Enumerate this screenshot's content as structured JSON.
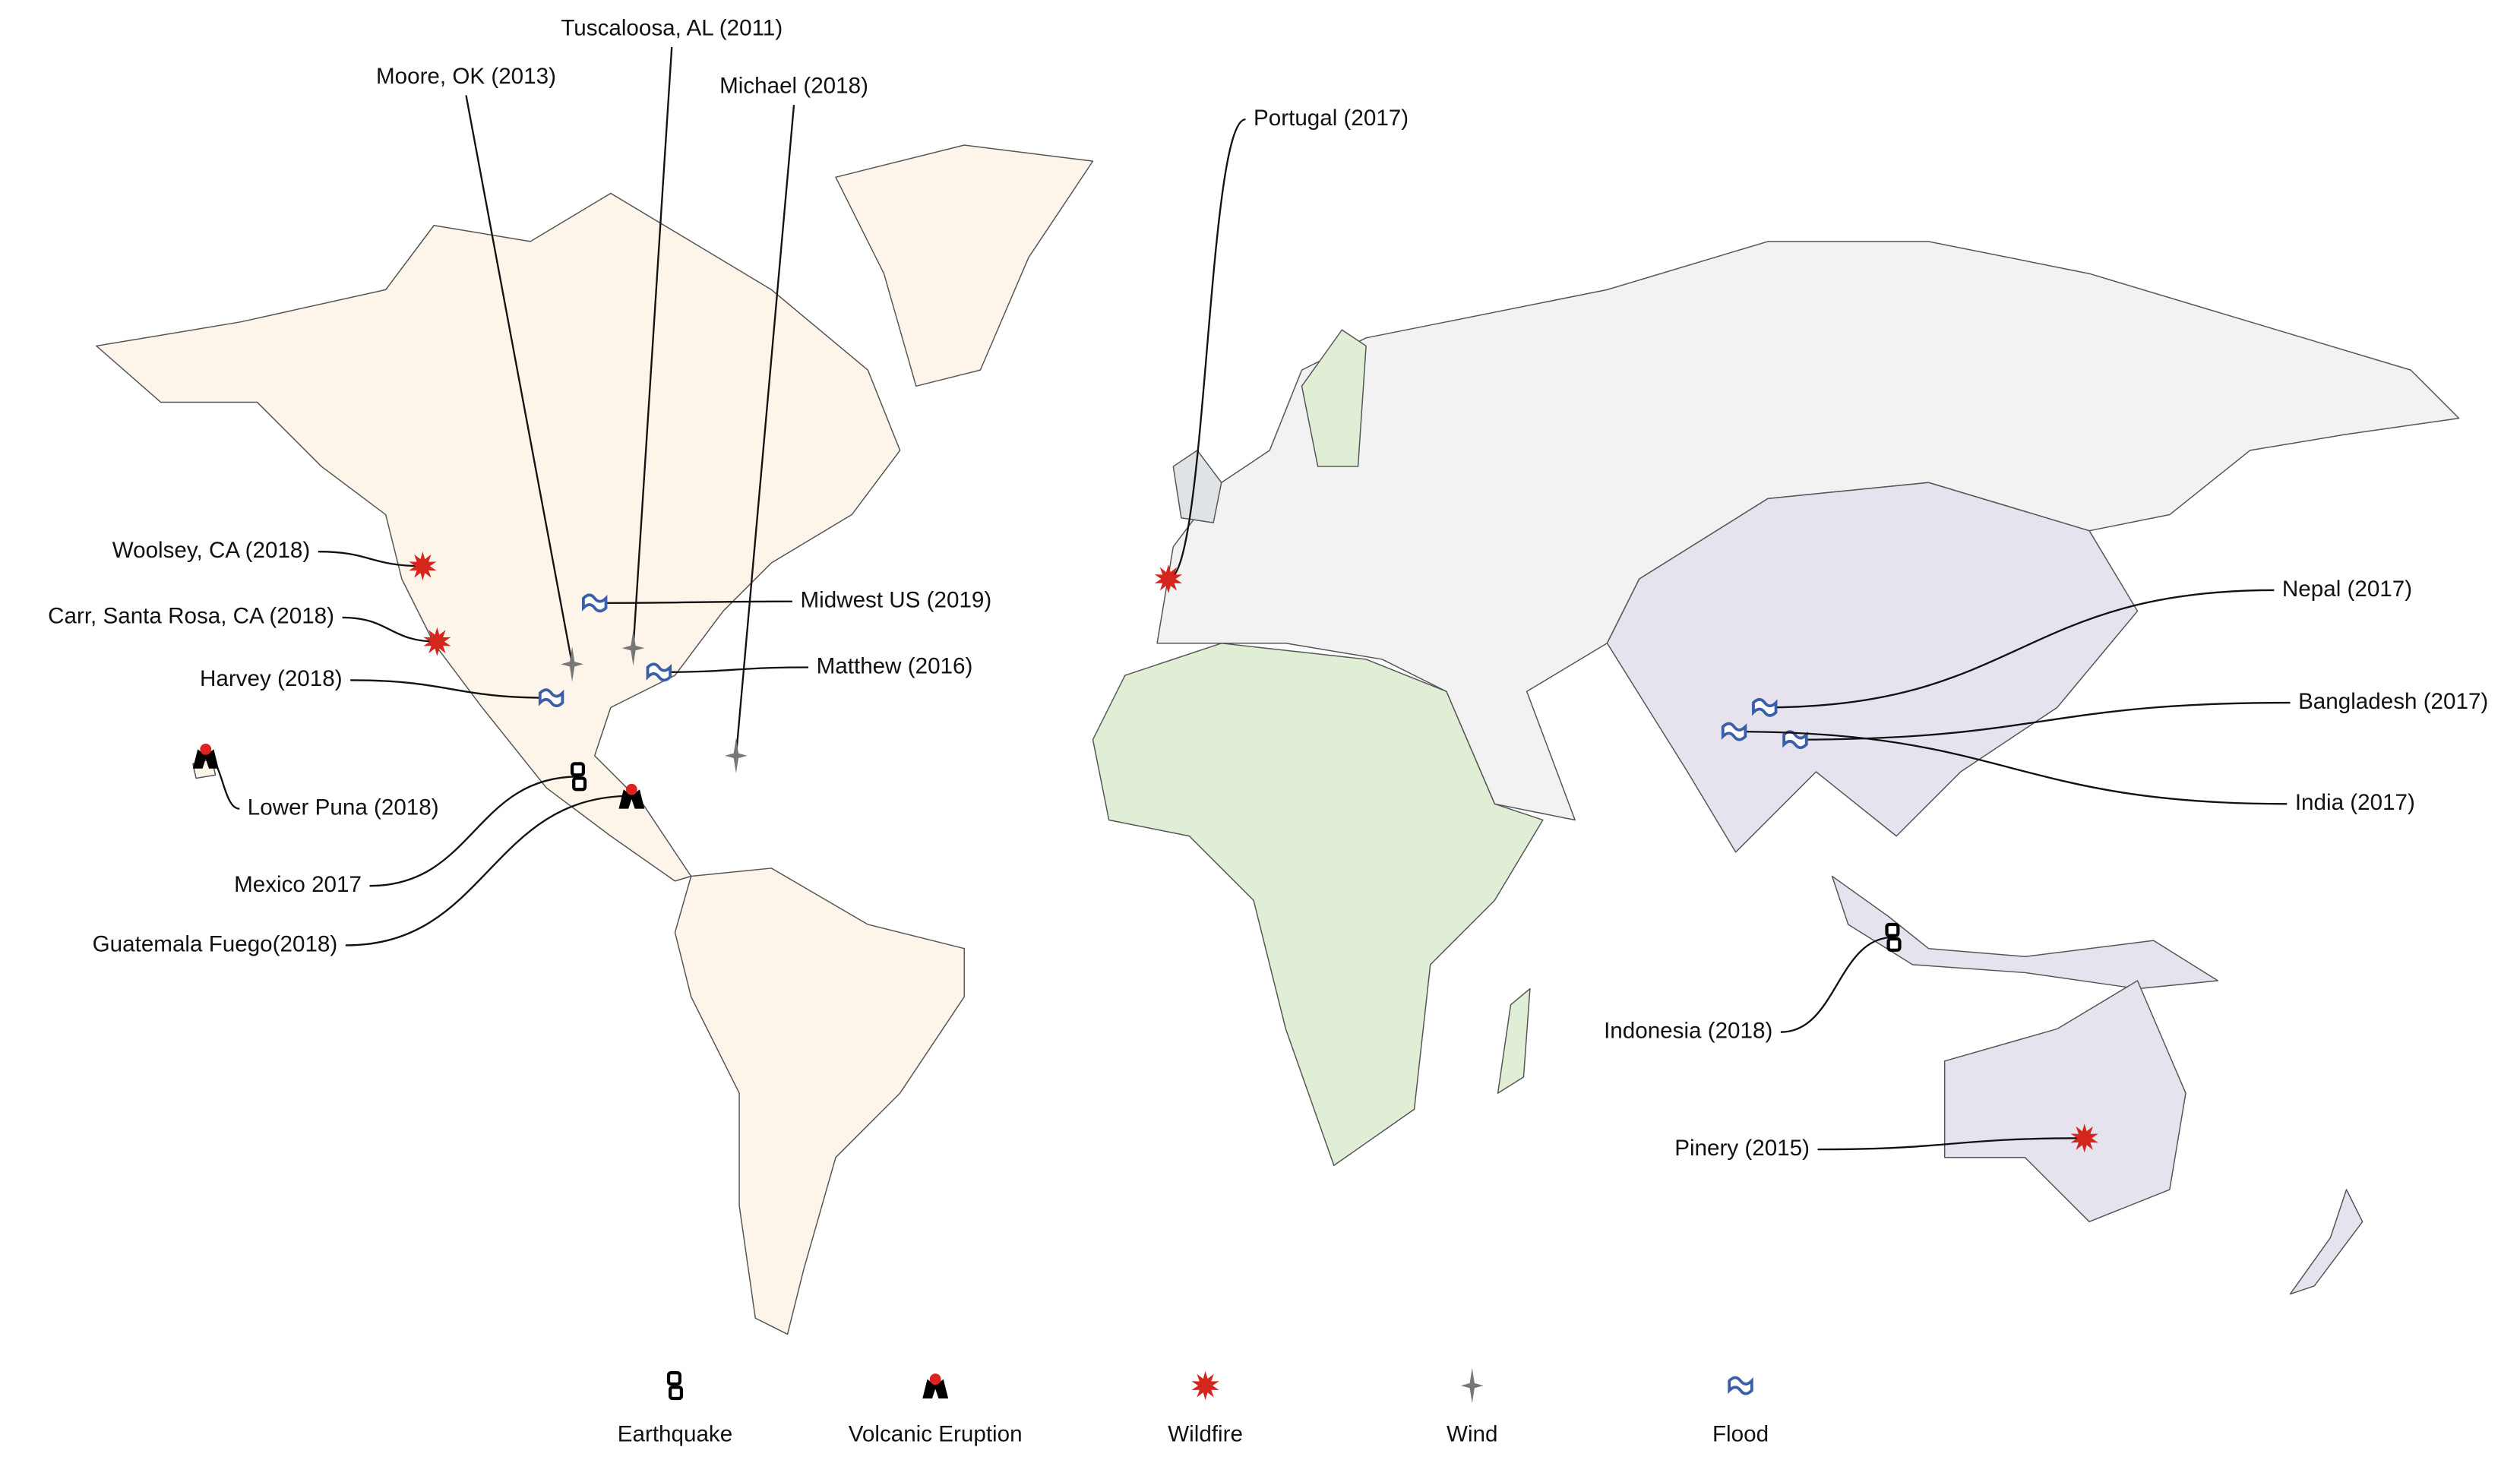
{
  "events": [
    {
      "label": "Tuscaloosa, AL (2011)",
      "type": "wind"
    },
    {
      "label": "Moore, OK (2013)",
      "type": "wind"
    },
    {
      "label": "Michael (2018)",
      "type": "wind"
    },
    {
      "label": "Portugal (2017)",
      "type": "wildfire"
    },
    {
      "label": "Woolsey, CA (2018)",
      "type": "wildfire"
    },
    {
      "label": "Carr, Santa Rosa, CA (2018)",
      "type": "wildfire"
    },
    {
      "label": "Harvey (2018)",
      "type": "flood"
    },
    {
      "label": "Midwest US (2019)",
      "type": "flood"
    },
    {
      "label": "Matthew (2016)",
      "type": "flood"
    },
    {
      "label": "Lower Puna (2018)",
      "type": "volcano"
    },
    {
      "label": "Mexico 2017",
      "type": "earthquake"
    },
    {
      "label": "Guatemala Fuego(2018)",
      "type": "volcano"
    },
    {
      "label": "Nepal (2017)",
      "type": "flood"
    },
    {
      "label": "Bangladesh (2017)",
      "type": "flood"
    },
    {
      "label": "India (2017)",
      "type": "flood"
    },
    {
      "label": "Indonesia (2018)",
      "type": "earthquake"
    },
    {
      "label": "Pinery (2015)",
      "type": "wildfire"
    }
  ],
  "legend": [
    {
      "type": "earthquake",
      "label": "Earthquake"
    },
    {
      "type": "volcano",
      "label": "Volcanic Eruption"
    },
    {
      "type": "wildfire",
      "label": "Wildfire"
    },
    {
      "type": "wind",
      "label": "Wind"
    },
    {
      "type": "flood",
      "label": "Flood"
    }
  ]
}
